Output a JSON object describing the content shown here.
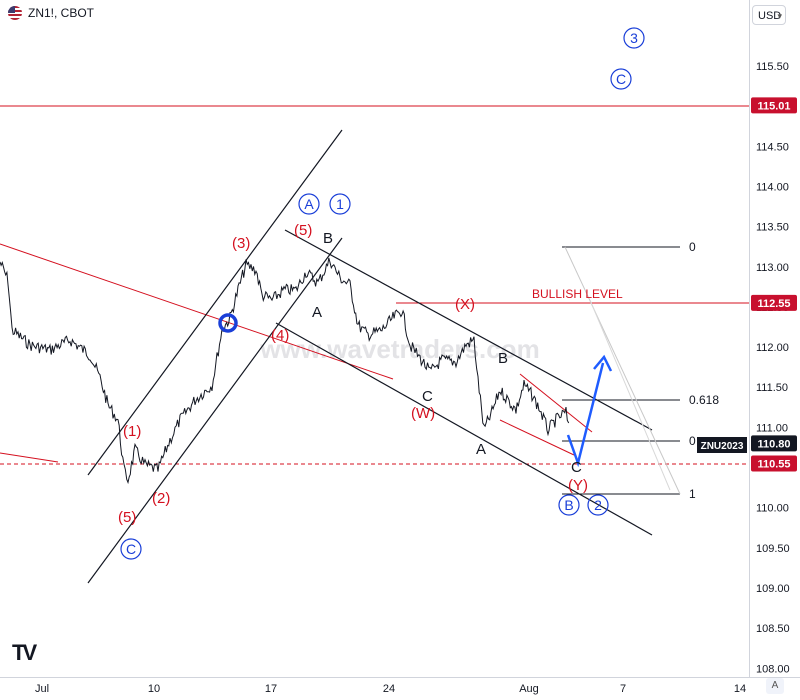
{
  "header": {
    "symbol": "ZN1!, CBOT",
    "currency": "USD"
  },
  "watermark": "www.wavetraders.com",
  "chart_data": {
    "type": "line",
    "yaxis": {
      "ticks": [
        "115.50",
        "115.00",
        "114.50",
        "114.00",
        "113.50",
        "113.00",
        "112.50",
        "112.00",
        "111.50",
        "111.00",
        "110.50",
        "110.00",
        "109.50",
        "109.00",
        "108.50",
        "108.00"
      ],
      "range": [
        108.0,
        115.9
      ]
    },
    "xaxis": {
      "ticks": [
        "Jul",
        "10",
        "17",
        "24",
        "Aug",
        "7",
        "14"
      ]
    },
    "price_labels": [
      {
        "text": "115.01",
        "value": 115.01,
        "color": "#c8102e"
      },
      {
        "text": "112.55",
        "value": 112.55,
        "color": "#c8102e"
      },
      {
        "text": "110.80",
        "value": 110.8,
        "color": "#131722"
      },
      {
        "text": "110.55",
        "value": 110.55,
        "color": "#c8102e"
      }
    ],
    "instrument_tag": "ZNU2023",
    "bullish_level": "BULLISH LEVEL",
    "fib_labels": [
      "0",
      "0.618",
      "0",
      "1"
    ],
    "wave_labels_red": [
      "(1)",
      "(2)",
      "(3)",
      "(4)",
      "(5)",
      "(5)",
      "(X)",
      "(W)",
      "(Y)"
    ],
    "wave_labels_black": [
      "B",
      "A",
      "C",
      "B",
      "A",
      "C"
    ],
    "wave_labels_circled": [
      "A",
      "1",
      "3",
      "C",
      "C",
      "B",
      "2"
    ],
    "accent_colors": {
      "red": "#d4101f",
      "blue": "#1a3fd8",
      "arrow": "#1f5cff"
    }
  }
}
